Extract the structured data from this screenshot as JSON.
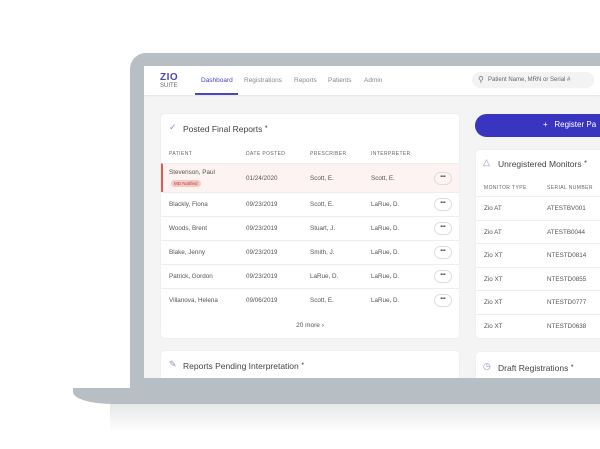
{
  "nav": {
    "logo_top": "ZIO",
    "logo_bottom": "SUITE",
    "links": [
      "Dashboard",
      "Registrations",
      "Reports",
      "Patients",
      "Admin"
    ],
    "active": "Dashboard",
    "search_placeholder": "Patient Name, MRN or Serial #"
  },
  "posted": {
    "title": "Posted Final Reports",
    "headers": [
      "PATIENT",
      "DATE POSTED",
      "PRESCRIBER",
      "INTERPRETER"
    ],
    "rows": [
      [
        "Stevenson, Paul",
        "01/24/2020",
        "Scott, E.",
        "Scott, E."
      ],
      [
        "Blackly, Fiona",
        "09/23/2019",
        "Scott, E.",
        "LaRue, D."
      ],
      [
        "Woods, Brent",
        "09/23/2019",
        "Stuart, J.",
        "LaRue, D."
      ],
      [
        "Blake, Jenny",
        "09/23/2019",
        "Smith, J.",
        "LaRue, D."
      ],
      [
        "Patrick, Gordon",
        "09/23/2019",
        "LaRue, D.",
        "LaRue, D."
      ],
      [
        "Villanova, Helena",
        "09/06/2019",
        "Scott, E.",
        "LaRue, D."
      ]
    ],
    "badge": "MD Notified",
    "more": "20 more"
  },
  "pending": {
    "title": "Reports Pending Interpretation"
  },
  "register_button": "Register Pa",
  "unregistered": {
    "title": "Unregistered Monitors",
    "headers": [
      "MONITOR TYPE",
      "SERIAL NUMBER"
    ],
    "rows": [
      [
        "Zio AT",
        "ATESTBV001"
      ],
      [
        "Zio AT",
        "ATESTB0044"
      ],
      [
        "Zio XT",
        "NTESTD0814"
      ],
      [
        "Zio XT",
        "NTESTD0855"
      ],
      [
        "Zio XT",
        "NTESTD0777"
      ],
      [
        "Zio XT",
        "NTESTD0638"
      ]
    ]
  },
  "drafts": {
    "title": "Draft Registrations"
  },
  "colors": {
    "accent": "#3a35c0",
    "alert": "#e05a4b"
  }
}
